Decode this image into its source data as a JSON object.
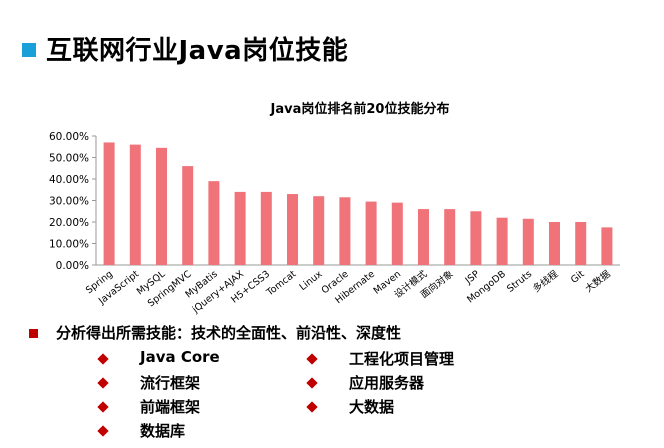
{
  "slide": {
    "title": "互联网行业Java岗位技能",
    "summary": "分析得出所需技能：技术的全面性、前沿性、深度性",
    "left_items": [
      "Java Core",
      "流行框架",
      "前端框架",
      "数据库"
    ],
    "right_items": [
      "工程化项目管理",
      "应用服务器",
      "大数据"
    ]
  },
  "colors": {
    "bar": "#f0737a",
    "accent_square": "#1aa0d8",
    "bullet": "#c00000"
  },
  "chart_data": {
    "type": "bar",
    "title": "Java岗位排名前20位技能分布",
    "xlabel": "",
    "ylabel": "",
    "ylim": [
      0,
      0.6
    ],
    "yticks": [
      "0.00%",
      "10.00%",
      "20.00%",
      "30.00%",
      "40.00%",
      "50.00%",
      "60.00%"
    ],
    "categories": [
      "Spring",
      "JavaScript",
      "MySQL",
      "SpringMVC",
      "MyBatis",
      "jQuery+AJAX",
      "H5+CSS3",
      "Tomcat",
      "Linux",
      "Oracle",
      "Hibernate",
      "Maven",
      "设计模式",
      "面向对象",
      "JSP",
      "MongoDB",
      "Struts",
      "多线程",
      "Git",
      "大数据"
    ],
    "values": [
      0.57,
      0.56,
      0.545,
      0.46,
      0.39,
      0.34,
      0.34,
      0.33,
      0.32,
      0.315,
      0.295,
      0.29,
      0.26,
      0.26,
      0.25,
      0.22,
      0.215,
      0.2,
      0.2,
      0.175
    ],
    "grid": false,
    "legend": "none"
  }
}
